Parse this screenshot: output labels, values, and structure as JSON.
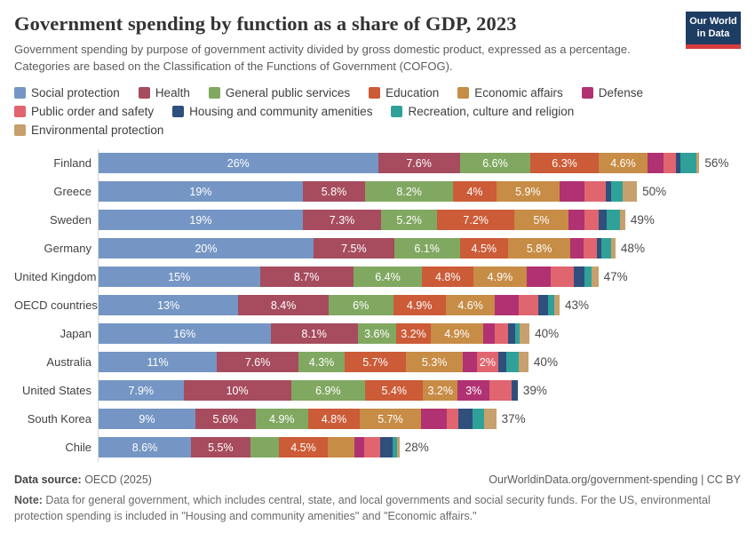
{
  "header": {
    "title": "Government spending by function as a share of GDP, 2023",
    "subtitle": "Government spending by purpose of government activity divided by gross domestic product, expressed as a percentage. Categories are based on the Classification of the Functions of Government (COFOG).",
    "logo": {
      "line1": "Our World",
      "line2": "in Data"
    }
  },
  "colors": {
    "logo_bg": "#1d3d63",
    "logo_bar": "#d73c3c",
    "axis_line": "#d9d9d9"
  },
  "legend_rows": [
    [
      0,
      1,
      2,
      3,
      4,
      5
    ],
    [
      6,
      7,
      8
    ],
    [
      9
    ]
  ],
  "chart_data": {
    "type": "bar",
    "stacked": true,
    "orientation": "horizontal",
    "unit": "%",
    "x_max": 58,
    "grid": false,
    "series_names": [
      "Social protection",
      "Health",
      "General public services",
      "Education",
      "Economic affairs",
      "Defense",
      "Public order and safety",
      "Housing and community amenities",
      "Recreation, culture and religion",
      "Environmental protection"
    ],
    "colors": [
      "#7596c4",
      "#a64c5e",
      "#81a861",
      "#cc5b37",
      "#c78c45",
      "#b03272",
      "#e0656f",
      "#2f4f7d",
      "#2fa199",
      "#c7a06d"
    ],
    "rows": [
      {
        "country": "Finland",
        "total": "56%",
        "values": [
          26,
          7.6,
          6.6,
          6.3,
          4.6,
          1.5,
          1.1,
          0.4,
          1.5,
          0.3
        ],
        "labels": [
          "26%",
          "7.6%",
          "6.6%",
          "6.3%",
          "4.6%",
          "",
          "",
          "",
          "",
          ""
        ]
      },
      {
        "country": "Greece",
        "total": "50%",
        "values": [
          19,
          5.8,
          8.2,
          4.0,
          5.9,
          2.3,
          2.0,
          0.5,
          1.1,
          1.3
        ],
        "labels": [
          "19%",
          "5.8%",
          "8.2%",
          "4%",
          "5.9%",
          "",
          "",
          "",
          "",
          ""
        ]
      },
      {
        "country": "Sweden",
        "total": "49%",
        "values": [
          19,
          7.3,
          5.2,
          7.2,
          5.0,
          1.5,
          1.3,
          0.8,
          1.2,
          0.5
        ],
        "labels": [
          "19%",
          "7.3%",
          "5.2%",
          "7.2%",
          "5%",
          "",
          "",
          "",
          "",
          ""
        ]
      },
      {
        "country": "Germany",
        "total": "48%",
        "values": [
          20,
          7.5,
          6.1,
          4.5,
          5.8,
          1.2,
          1.3,
          0.4,
          0.9,
          0.4
        ],
        "labels": [
          "20%",
          "7.5%",
          "6.1%",
          "4.5%",
          "5.8%",
          "",
          "",
          "",
          "",
          ""
        ]
      },
      {
        "country": "United Kingdom",
        "total": "47%",
        "values": [
          15,
          8.7,
          6.4,
          4.8,
          4.9,
          2.3,
          2.1,
          1.0,
          0.7,
          0.6
        ],
        "labels": [
          "15%",
          "8.7%",
          "6.4%",
          "4.8%",
          "4.9%",
          "",
          "",
          "",
          "",
          ""
        ]
      },
      {
        "country": "OECD countries",
        "total": "43%",
        "values": [
          13,
          8.4,
          6.0,
          4.9,
          4.6,
          2.2,
          1.8,
          0.9,
          0.6,
          0.5
        ],
        "labels": [
          "13%",
          "8.4%",
          "6%",
          "4.9%",
          "4.6%",
          "",
          "",
          "",
          "",
          ""
        ]
      },
      {
        "country": "Japan",
        "total": "40%",
        "values": [
          16,
          8.1,
          3.6,
          3.2,
          4.9,
          1.1,
          1.2,
          0.7,
          0.4,
          0.9
        ],
        "labels": [
          "16%",
          "8.1%",
          "3.6%",
          "3.2%",
          "4.9%",
          "",
          "",
          "",
          "",
          ""
        ]
      },
      {
        "country": "Australia",
        "total": "40%",
        "values": [
          11,
          7.6,
          4.3,
          5.7,
          5.3,
          1.3,
          2.0,
          0.7,
          1.2,
          0.9
        ],
        "labels": [
          "11%",
          "7.6%",
          "4.3%",
          "5.7%",
          "5.3%",
          "",
          "2%",
          "",
          "",
          ""
        ]
      },
      {
        "country": "United States",
        "total": "39%",
        "values": [
          7.9,
          10,
          6.9,
          5.4,
          3.2,
          3.0,
          2.0,
          0.6,
          0,
          0
        ],
        "labels": [
          "7.9%",
          "10%",
          "6.9%",
          "5.4%",
          "3.2%",
          "3%",
          "",
          "",
          "",
          ""
        ]
      },
      {
        "country": "South Korea",
        "total": "37%",
        "values": [
          9,
          5.6,
          4.9,
          4.8,
          5.7,
          2.4,
          1.1,
          1.3,
          1.1,
          1.1
        ],
        "labels": [
          "9%",
          "5.6%",
          "4.9%",
          "4.8%",
          "5.7%",
          "",
          "",
          "",
          "",
          ""
        ]
      },
      {
        "country": "Chile",
        "total": "28%",
        "values": [
          8.6,
          5.5,
          2.7,
          4.5,
          2.5,
          0.9,
          1.5,
          1.2,
          0.4,
          0.2
        ],
        "labels": [
          "8.6%",
          "5.5%",
          "",
          "4.5%",
          "",
          "",
          "",
          "",
          "",
          ""
        ]
      }
    ]
  },
  "footer": {
    "data_source_prefix": "Data source:",
    "data_source_rest": " OECD (2025)",
    "credit": "OurWorldinData.org/government-spending | CC BY",
    "note_prefix": "Note:",
    "note_rest": " Data for general government, which includes central, state, and local governments and social security funds. For the US, environmental protection spending is included in \"Housing and community amenities\" and \"Economic affairs.\""
  }
}
